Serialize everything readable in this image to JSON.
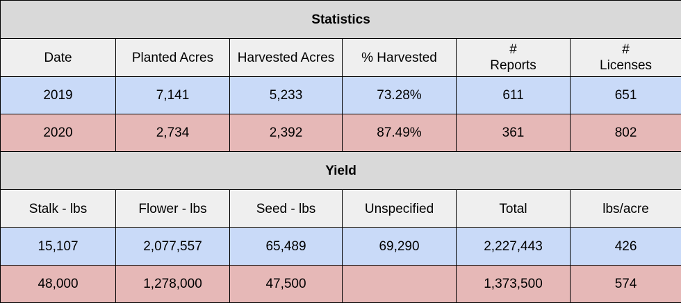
{
  "statistics": {
    "title": "Statistics",
    "headers": [
      {
        "lines": [
          "Date"
        ]
      },
      {
        "lines": [
          "Planted Acres"
        ]
      },
      {
        "lines": [
          "Harvested Acres"
        ]
      },
      {
        "lines": [
          "% Harvested"
        ]
      },
      {
        "lines": [
          "#",
          "Reports"
        ]
      },
      {
        "lines": [
          "#",
          "Licenses"
        ]
      }
    ],
    "rows": [
      {
        "cells": [
          "2019",
          "7,141",
          "5,233",
          "73.28%",
          "611",
          "651"
        ]
      },
      {
        "cells": [
          "2020",
          "2,734",
          "2,392",
          "87.49%",
          "361",
          "802"
        ]
      }
    ]
  },
  "yield": {
    "title": "Yield",
    "headers": [
      "Stalk - lbs",
      "Flower - lbs",
      "Seed - lbs",
      "Unspecified",
      "Total",
      "lbs/acre"
    ],
    "rows": [
      {
        "cells": [
          "15,107",
          "2,077,557",
          "65,489",
          "69,290",
          "2,227,443",
          "426"
        ]
      },
      {
        "cells": [
          "48,000",
          "1,278,000",
          "47,500",
          "",
          "1,373,500",
          "574"
        ]
      }
    ]
  },
  "colors": {
    "title_bg": "#d9d9d9",
    "header_bg": "#efefef",
    "row_2019_bg": "#c9daf8",
    "row_2020_bg": "#e6b8b7"
  }
}
